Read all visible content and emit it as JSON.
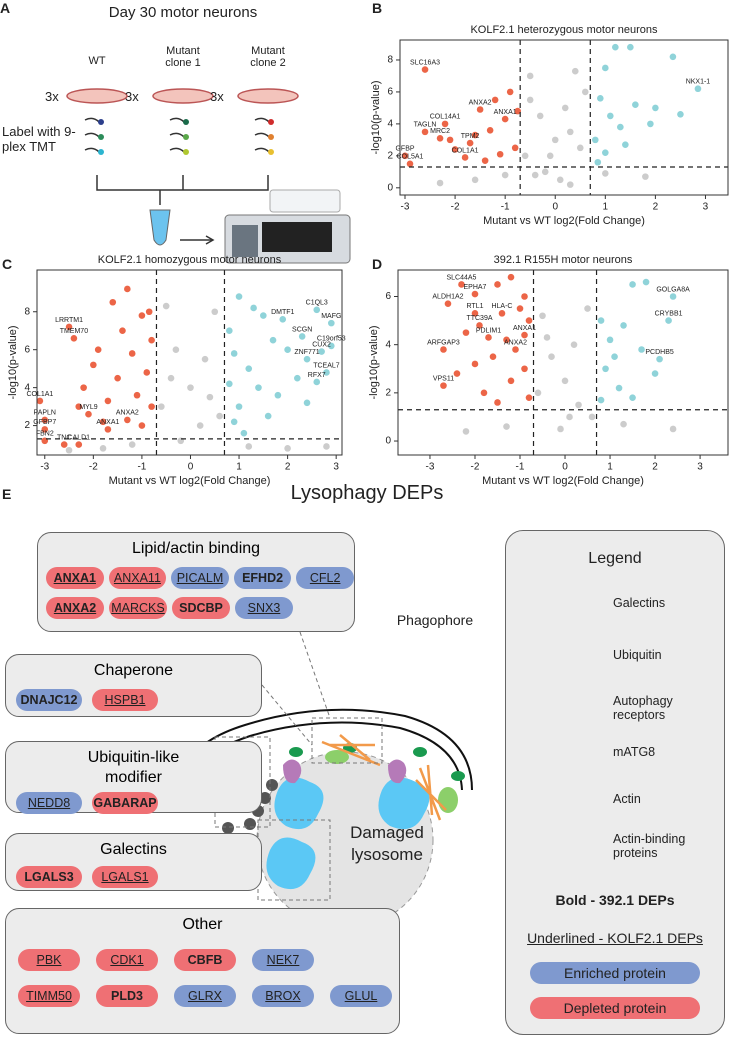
{
  "panel_labels": [
    "A",
    "B",
    "C",
    "D",
    "E"
  ],
  "panel_a": {
    "title": "Day 30 motor neurons",
    "conditions": [
      "WT",
      "Mutant clone 1",
      "Mutant clone 2"
    ],
    "replicates": [
      "3x",
      "3x",
      "3x"
    ],
    "label_text": "Label with 9-plex TMT"
  },
  "chart_data": [
    {
      "type": "scatter",
      "title": "KOLF2.1 heterozygous motor neurons",
      "x_label": "Mutant vs WT log2(Fold Change)",
      "y_label": "-log10(p-value)",
      "xlim": [
        -3.1,
        3.45
      ],
      "ylim": [
        -0.45,
        9.25
      ],
      "xticks": [
        -3,
        -2,
        -1,
        0,
        1,
        2,
        3
      ],
      "yticks": [
        0,
        2,
        4,
        6,
        8
      ],
      "thresholds": {
        "x": [
          -0.7,
          0.7
        ],
        "y": 1.3
      },
      "series": [
        {
          "color": "#cccccc",
          "x": [
            -0.5,
            -0.3,
            0,
            0.2,
            0.4,
            -0.6,
            0.5,
            -0.2,
            0.1,
            0.3,
            -0.4,
            0.6,
            -1.0,
            1.0,
            -1.6,
            1.8,
            -0.1,
            0.3,
            -0.5,
            -2.3
          ],
          "y": [
            7.0,
            4.5,
            3.0,
            5.0,
            7.3,
            2.0,
            2.5,
            1.0,
            0.5,
            0.2,
            0.8,
            6.0,
            0.8,
            0.9,
            0.5,
            0.7,
            2.0,
            3.5,
            5.5,
            0.3
          ]
        },
        {
          "color": "#ec6547",
          "x": [
            -2.6,
            -1.5,
            -1.0,
            -2.2,
            -2.6,
            -2.3,
            -1.7,
            -3.0,
            -1.8,
            -2.9,
            -1.2,
            -0.9,
            -1.3,
            -0.8,
            -1.1,
            -2.0,
            -1.6,
            -0.75,
            -1.4,
            -2.1
          ],
          "y": [
            7.4,
            4.9,
            4.3,
            4.0,
            3.5,
            3.1,
            2.8,
            2.0,
            1.9,
            1.5,
            5.5,
            6.0,
            3.6,
            2.5,
            2.1,
            2.4,
            3.3,
            4.8,
            1.7,
            3.0
          ],
          "labels": [
            "SLC16A3",
            "ANXA2",
            "ANXA1",
            "COL14A1",
            "TAGLN",
            "MRC2",
            "TPM2",
            "GFBP",
            "COL1A1",
            "COL5A1",
            null,
            null,
            null,
            null,
            null,
            null,
            null,
            null,
            null,
            null
          ]
        },
        {
          "color": "#8fd3d9",
          "x": [
            2.85,
            2.35,
            1.5,
            1.2,
            1.0,
            0.9,
            1.1,
            1.3,
            0.8,
            1.6,
            2.0,
            1.9,
            2.5,
            1.0,
            0.85,
            1.4
          ],
          "y": [
            6.2,
            8.2,
            8.8,
            8.8,
            7.5,
            5.6,
            4.5,
            3.8,
            3.0,
            5.2,
            5.0,
            4.0,
            4.6,
            2.2,
            1.6,
            2.7
          ],
          "labels": [
            "NKX1-1",
            null,
            null,
            null,
            null,
            null,
            null,
            null,
            null,
            null,
            null,
            null,
            null,
            null,
            null,
            null
          ]
        }
      ]
    },
    {
      "type": "scatter",
      "title": "KOLF2.1 homozygous motor neurons",
      "x_label": "Mutant vs WT log2(Fold Change)",
      "y_label": "-log10(p-value)",
      "xlim": [
        -3.16,
        3.12
      ],
      "ylim": [
        0.45,
        10.2
      ],
      "xticks": [
        -3,
        -2,
        -1,
        0,
        1,
        2,
        3
      ],
      "yticks": [
        2,
        4,
        6,
        8
      ],
      "thresholds": {
        "x": [
          -0.7,
          0.7
        ],
        "y": 1.3
      },
      "series": [
        {
          "color": "#cccccc",
          "x": [
            -0.5,
            -0.3,
            0,
            0.3,
            0.5,
            -0.6,
            0.2,
            -0.2,
            0.6,
            -1.2,
            1.2,
            -2.5,
            2.0,
            0.4,
            -0.4,
            -1.8,
            2.8
          ],
          "y": [
            8.3,
            6.0,
            4.0,
            5.5,
            8.0,
            3.0,
            2.0,
            1.2,
            2.5,
            1.0,
            0.9,
            0.7,
            0.8,
            3.5,
            4.5,
            0.8,
            0.9
          ]
        },
        {
          "color": "#ec6547",
          "x": [
            -2.5,
            -2.4,
            -3.1,
            -2.1,
            -3.0,
            -3.0,
            -3.0,
            -2.6,
            -2.3,
            -1.3,
            -1.7,
            -1.0,
            -1.3,
            -1.6,
            -0.8,
            -1.2,
            -1.9,
            -0.9,
            -1.5,
            -2.2,
            -1.1,
            -0.8,
            -1.7,
            -2.0,
            -1.4,
            -0.85,
            -2.3,
            -1.0,
            -1.8
          ],
          "y": [
            7.2,
            6.6,
            3.3,
            2.6,
            2.3,
            1.8,
            1.2,
            1.0,
            1.0,
            2.3,
            1.8,
            7.8,
            9.2,
            8.5,
            6.5,
            5.8,
            6.0,
            4.8,
            4.5,
            4.0,
            3.6,
            3.0,
            3.3,
            5.2,
            7.0,
            8.0,
            3.0,
            2.0,
            2.2
          ],
          "labels": [
            "LRRTM1",
            "TMEM70",
            "COL1A1",
            "MYL9",
            "PAPLN",
            "GFBP7",
            "FBN2",
            "TNC",
            "CALD1",
            "ANXA2",
            "ANXA1",
            null,
            null,
            null,
            null,
            null,
            null,
            null,
            null,
            null,
            null,
            null,
            null,
            null,
            null,
            null,
            null,
            null,
            null
          ]
        },
        {
          "color": "#8fd3d9",
          "x": [
            2.6,
            2.9,
            1.9,
            2.3,
            2.9,
            2.7,
            2.4,
            2.8,
            2.6,
            1.0,
            1.3,
            0.8,
            1.5,
            0.9,
            1.7,
            1.2,
            2.0,
            0.8,
            1.4,
            1.8,
            1.0,
            2.2,
            0.9,
            1.6,
            2.4,
            1.1
          ],
          "y": [
            8.1,
            7.4,
            7.6,
            6.7,
            6.2,
            5.9,
            5.5,
            4.8,
            4.3,
            8.8,
            8.2,
            7.0,
            7.8,
            5.8,
            6.5,
            5.0,
            6.0,
            4.2,
            4.0,
            3.6,
            3.0,
            4.5,
            2.2,
            2.5,
            3.2,
            1.6
          ],
          "labels": [
            "C1QL3",
            "MAFG",
            "DMTF1",
            "SCGN",
            "C19orf53",
            "CUX2",
            "ZNF771",
            "TCEAL7",
            "RFX7",
            null,
            null,
            null,
            null,
            null,
            null,
            null,
            null,
            null,
            null,
            null,
            null,
            null,
            null,
            null,
            null,
            null
          ]
        }
      ]
    },
    {
      "type": "scatter",
      "title": "392.1 R155H motor neurons",
      "x_label": "Mutant vs WT log2(Fold Change)",
      "y_label": "-log10(p-value)",
      "xlim": [
        -3.71,
        3.62
      ],
      "ylim": [
        -0.58,
        7.1
      ],
      "xticks": [
        -3,
        -2,
        -1,
        0,
        1,
        2,
        3
      ],
      "yticks": [
        0,
        2,
        4,
        6
      ],
      "thresholds": {
        "x": [
          -0.7,
          0.7
        ],
        "y": 1.3
      },
      "series": [
        {
          "color": "#cccccc",
          "x": [
            -0.5,
            -0.3,
            0,
            0.2,
            0.5,
            -0.6,
            0.3,
            -0.1,
            0.6,
            -1.3,
            1.3,
            -2.2,
            2.4,
            -0.4,
            0.1
          ],
          "y": [
            5.2,
            3.5,
            2.5,
            4.0,
            5.5,
            2.0,
            1.5,
            0.5,
            1.0,
            0.6,
            0.7,
            0.4,
            0.5,
            4.3,
            1.0
          ]
        },
        {
          "color": "#ec6547",
          "x": [
            -2.3,
            -2.0,
            -2.6,
            -2.0,
            -1.9,
            -1.4,
            -1.7,
            -2.7,
            -1.1,
            -0.9,
            -2.7,
            -1.2,
            -0.9,
            -1.5,
            -0.8,
            -1.3,
            -2.2,
            -1.6,
            -0.9,
            -2.0,
            -1.2,
            -1.8,
            -0.8,
            -2.4,
            -1.0,
            -1.5
          ],
          "y": [
            6.5,
            6.1,
            5.7,
            5.3,
            4.8,
            5.3,
            4.3,
            3.8,
            3.8,
            4.4,
            2.3,
            6.8,
            6.0,
            6.5,
            5.0,
            4.2,
            4.5,
            3.5,
            3.0,
            3.2,
            2.5,
            2.0,
            1.8,
            2.8,
            5.5,
            1.6
          ],
          "labels": [
            "SLC44A5",
            "EPHA7",
            "ALDH1A2",
            "RTL1",
            "TTC39A",
            "HLA-C",
            "PDLIM1",
            "ARFGAP3",
            "ANXA2",
            "ANXA1",
            "VPS11",
            null,
            null,
            null,
            null,
            null,
            null,
            null,
            null,
            null,
            null,
            null,
            null,
            null,
            null,
            null
          ]
        },
        {
          "color": "#8fd3d9",
          "x": [
            2.4,
            2.3,
            2.1,
            1.5,
            1.8,
            0.8,
            1.0,
            1.3,
            0.9,
            1.7,
            1.2,
            2.0,
            0.8,
            1.5,
            1.1
          ],
          "y": [
            6.0,
            5.0,
            3.4,
            6.5,
            6.6,
            5.0,
            4.2,
            4.8,
            3.0,
            3.8,
            2.2,
            2.8,
            1.7,
            1.8,
            3.5
          ],
          "labels": [
            "GOLGA8A",
            "CRYBB1",
            "PCDHB5",
            null,
            null,
            null,
            null,
            null,
            null,
            null,
            null,
            null,
            null,
            null,
            null
          ]
        }
      ]
    }
  ],
  "panel_e": {
    "title": "Lysophagy DEPs",
    "colors": {
      "enriched": "#7f99cf",
      "depleted": "#ef7074"
    },
    "groups": [
      {
        "title": "Lipid/actin binding",
        "rows": [
          [
            {
              "name": "ANXA1",
              "status": "depleted",
              "bold": true,
              "underline": true
            },
            {
              "name": "ANXA11",
              "status": "depleted",
              "bold": false,
              "underline": true
            },
            {
              "name": "PICALM",
              "status": "enriched",
              "bold": false,
              "underline": true
            },
            {
              "name": "EFHD2",
              "status": "enriched",
              "bold": true,
              "underline": false
            },
            {
              "name": "CFL2",
              "status": "enriched",
              "bold": false,
              "underline": true
            }
          ],
          [
            {
              "name": "ANXA2",
              "status": "depleted",
              "bold": true,
              "underline": true
            },
            {
              "name": "MARCKS",
              "status": "depleted",
              "bold": false,
              "underline": true
            },
            {
              "name": "SDCBP",
              "status": "depleted",
              "bold": true,
              "underline": false
            },
            {
              "name": "SNX3",
              "status": "enriched",
              "bold": false,
              "underline": true
            }
          ]
        ]
      },
      {
        "title": "Chaperone",
        "rows": [
          [
            {
              "name": "DNAJC12",
              "status": "enriched",
              "bold": true,
              "underline": false
            },
            {
              "name": "HSPB1",
              "status": "depleted",
              "bold": false,
              "underline": true
            }
          ]
        ]
      },
      {
        "title": "Ubiquitin-like modifier",
        "rows": [
          [
            {
              "name": "NEDD8",
              "status": "enriched",
              "bold": false,
              "underline": true
            },
            {
              "name": "GABARAP",
              "status": "depleted",
              "bold": true,
              "underline": false
            }
          ]
        ]
      },
      {
        "title": "Galectins",
        "rows": [
          [
            {
              "name": "LGALS3",
              "status": "depleted",
              "bold": true,
              "underline": false
            },
            {
              "name": "LGALS1",
              "status": "depleted",
              "bold": false,
              "underline": true
            }
          ]
        ]
      },
      {
        "title": "Other",
        "rows": [
          [
            {
              "name": "PBK",
              "status": "depleted",
              "bold": false,
              "underline": true
            },
            {
              "name": "CDK1",
              "status": "depleted",
              "bold": false,
              "underline": true
            },
            {
              "name": "CBFB",
              "status": "depleted",
              "bold": true,
              "underline": false
            },
            {
              "name": "NEK7",
              "status": "enriched",
              "bold": false,
              "underline": true
            }
          ],
          [
            {
              "name": "TIMM50",
              "status": "depleted",
              "bold": false,
              "underline": true
            },
            {
              "name": "PLD3",
              "status": "depleted",
              "bold": true,
              "underline": false
            },
            {
              "name": "GLRX",
              "status": "enriched",
              "bold": false,
              "underline": true
            },
            {
              "name": "BROX",
              "status": "enriched",
              "bold": false,
              "underline": true
            },
            {
              "name": "GLUL",
              "status": "enriched",
              "bold": false,
              "underline": true
            }
          ]
        ]
      }
    ],
    "diagram": {
      "phagophore": "Phagophore",
      "lysosome": "Damaged lysosome"
    },
    "legend": {
      "title": "Legend",
      "items": [
        "Galectins",
        "Ubiquitin",
        "Autophagy receptors",
        "mATG8",
        "Actin",
        "Actin-binding proteins"
      ],
      "bold_note": "Bold - 392.1 DEPs",
      "underline_note": "Underlined - KOLF2.1 DEPs",
      "enriched": "Enriched protein",
      "depleted": "Depleted protein"
    }
  }
}
